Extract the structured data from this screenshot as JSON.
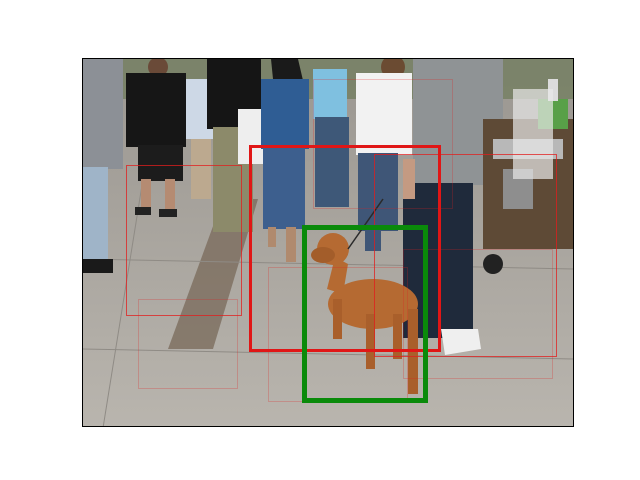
{
  "image": {
    "description_icon": "street-photo-icon"
  },
  "colors": {
    "detection_red": "#e01616",
    "ground_truth_green": "#0a8a0a"
  }
}
